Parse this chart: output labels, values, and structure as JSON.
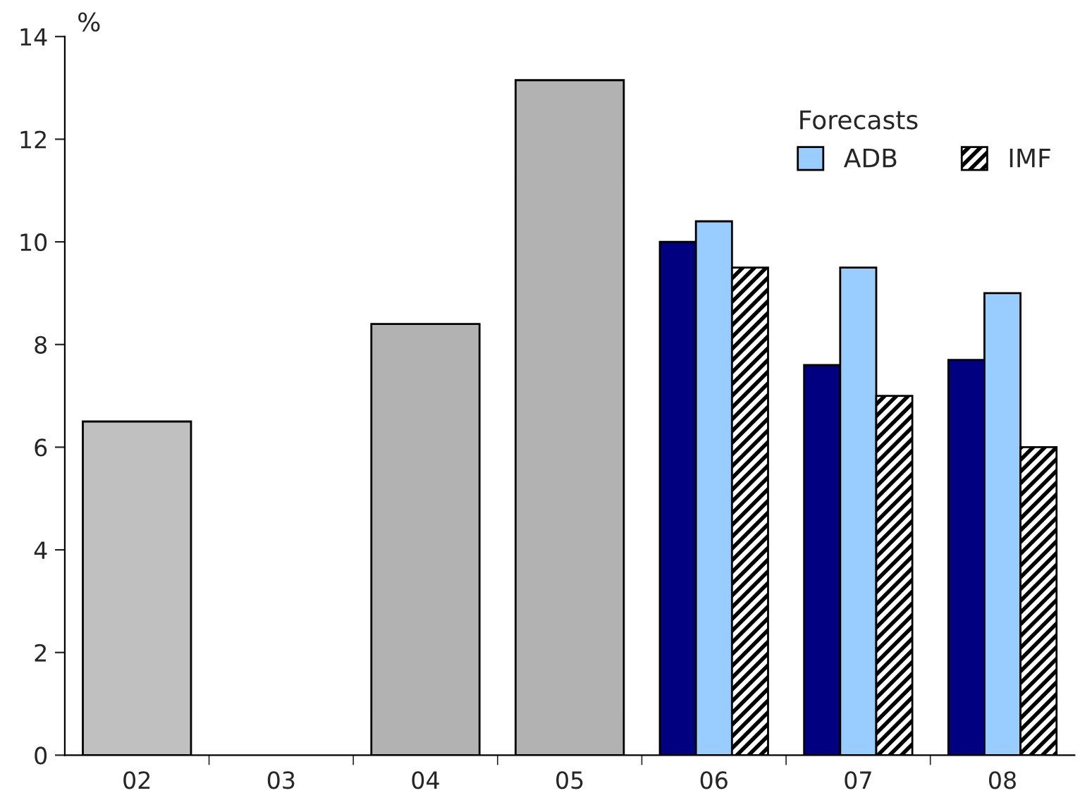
{
  "chart_data": {
    "type": "bar",
    "ylabel": "%",
    "legend_title": "Forecasts",
    "legend": "top right",
    "grid": false,
    "categories": [
      "02",
      "03",
      "04",
      "05",
      "06",
      "07",
      "08"
    ],
    "ylim": [
      0,
      14
    ],
    "yticks": [
      0,
      2,
      4,
      6,
      8,
      10,
      12,
      14
    ],
    "series": [
      {
        "colors": [
          "#c0c0c0",
          null,
          "#b2b2b2",
          "#b2b2b2",
          null,
          null,
          null
        ],
        "color": "#b2b2b2",
        "values": [
          6.5,
          null,
          8.4,
          13.15,
          null,
          null,
          null
        ]
      },
      {
        "color": "#000080",
        "values": [
          null,
          null,
          null,
          null,
          10.0,
          7.6,
          7.7
        ]
      },
      {
        "name": "ADB",
        "color": "#99ccff",
        "values": [
          null,
          null,
          null,
          null,
          10.4,
          9.5,
          9.0
        ]
      },
      {
        "name": "IMF",
        "color": "#000000",
        "values": [
          null,
          null,
          null,
          null,
          9.5,
          7.0,
          6.0
        ]
      }
    ]
  }
}
